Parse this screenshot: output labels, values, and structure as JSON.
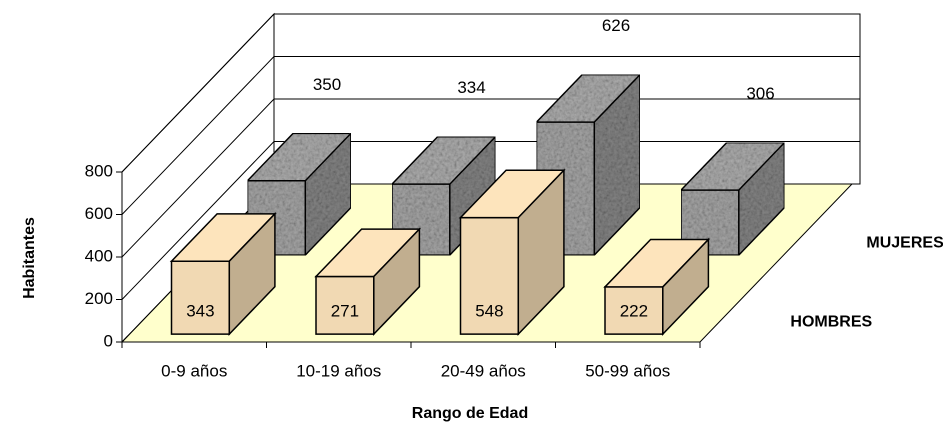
{
  "chart_data": {
    "type": "bar3d",
    "categories": [
      "0-9 años",
      "10-19 años",
      "20-49 años",
      "50-99 años"
    ],
    "series": [
      {
        "name": "HOMBRES",
        "color": "#f1d9b3",
        "values": [
          343,
          271,
          548,
          222
        ]
      },
      {
        "name": "MUJERES",
        "color": "#a8a8a8",
        "values": [
          350,
          334,
          626,
          306
        ]
      }
    ],
    "ylim": [
      0,
      800
    ],
    "yticks": [
      0,
      200,
      400,
      600,
      800
    ],
    "y_label": "Habitantes",
    "x_label": "Rango de Edad",
    "floor_color": "#ffffcc",
    "grid": true
  }
}
